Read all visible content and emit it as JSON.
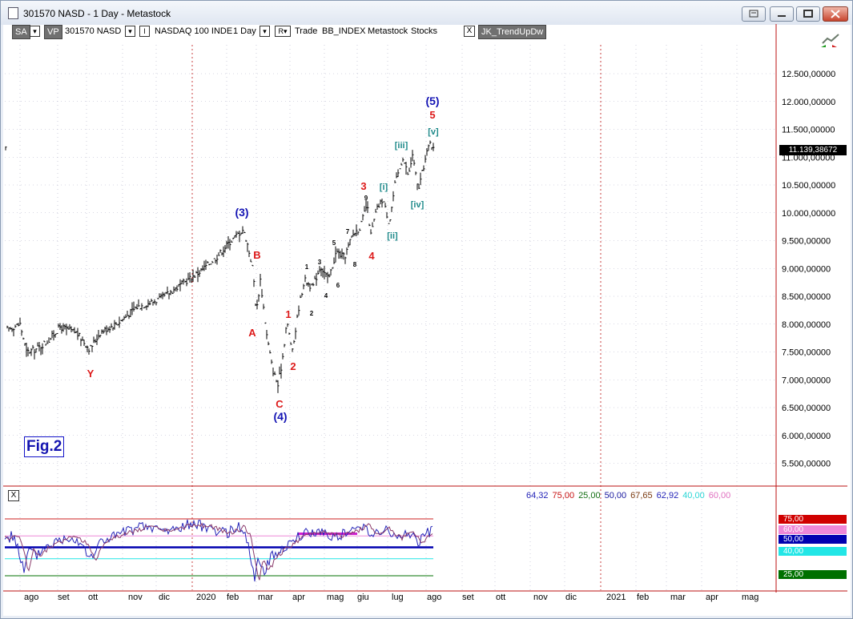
{
  "window": {
    "title": "301570 NASD - 1 Day - Metastock"
  },
  "toolbar": {
    "sa_label": "SA",
    "vp_label": "VP",
    "symbol": "301570 NASD",
    "index_name": "NASDAQ 100 INDE",
    "period": "1 Day",
    "btn_i_label": "I",
    "btn_r_label": "R",
    "trade_label": "Trade",
    "bb_label": "BB_INDEX",
    "metastock_label": "Metastock",
    "stocks_label": "Stocks",
    "close_label": "X",
    "indicator_label": "JK_TrendUpDw"
  },
  "figure_label": "Fig.2",
  "price_axis": {
    "ticks": [
      "12.500,00000",
      "12.000,00000",
      "11.500,00000",
      "11.000,00000",
      "10.500,00000",
      "10.000,00000",
      "9.500,00000",
      "9.000,00000",
      "8.500,00000",
      "8.000,00000",
      "7.500,00000",
      "7.000,00000",
      "6.500,00000",
      "6.000,00000",
      "5.500,00000"
    ],
    "current_value": "11.139,38672"
  },
  "time_axis": {
    "labels": [
      "ago",
      "set",
      "ott",
      "nov",
      "dic",
      "2020",
      "feb",
      "mar",
      "apr",
      "mag",
      "giu",
      "lug",
      "ago",
      "set",
      "ott",
      "nov",
      "dic",
      "2021",
      "feb",
      "mar",
      "apr",
      "mag"
    ]
  },
  "oscillator": {
    "close_label": "X",
    "values": [
      {
        "text": "64,32",
        "color": "#2424b8"
      },
      {
        "text": "75,00",
        "color": "#c81414"
      },
      {
        "text": "25,00",
        "color": "#157015"
      },
      {
        "text": "50,00",
        "color": "#1a1aa0"
      },
      {
        "text": "67,65",
        "color": "#7a3a10"
      },
      {
        "text": "62,92",
        "color": "#2424b8"
      },
      {
        "text": "40,00",
        "color": "#2ad6d6"
      },
      {
        "text": "60,00",
        "color": "#e070c0"
      }
    ],
    "axis_tags": [
      {
        "text": "75,00",
        "bg": "#d00000",
        "fg": "#ffffff"
      },
      {
        "text": "60,00",
        "bg": "#ee88d8",
        "fg": "#ffffff"
      },
      {
        "text": "50,00",
        "bg": "#0000b0",
        "fg": "#ffffff"
      },
      {
        "text": "40,00",
        "bg": "#22e6e6",
        "fg": "#ffffff"
      },
      {
        "text": "25,00",
        "bg": "#007000",
        "fg": "#ffffff"
      }
    ]
  },
  "wave_labels": {
    "y": "Y",
    "w3": "(3)",
    "b": "B",
    "a": "A",
    "c": "C",
    "w4": "(4)",
    "r1": "1",
    "r2": "2",
    "r3": "3",
    "r4": "4",
    "r5": "5",
    "w5": "(5)",
    "t_i": "[i]",
    "t_ii": "[ii]",
    "t_iii": "[iii]",
    "t_iv": "[iv]",
    "t_v": "[v]",
    "s1": "1",
    "s2": "2",
    "s3": "3",
    "s4": "4",
    "s5": "5",
    "s6": "6",
    "s7": "7",
    "s8": "8",
    "s9": "9"
  },
  "colors": {
    "red_label": "#dd1a1a",
    "blue_label": "#1414b4",
    "teal_label": "#1f8a8a",
    "grid_line": "#bb1111"
  },
  "chart_data": {
    "type": "bar",
    "title": "301570 NASD - 1 Day",
    "series": [
      {
        "name": "NASDAQ 100 INDE",
        "x": [
          "ago",
          "set",
          "ott",
          "nov",
          "dic",
          "2020",
          "feb",
          "mar",
          "apr",
          "mag",
          "giu",
          "lug",
          "ago"
        ],
        "values": [
          7800,
          7700,
          7650,
          8200,
          8450,
          8800,
          9500,
          7100,
          8200,
          9300,
          9900,
          10650,
          11139
        ]
      }
    ],
    "ylim": [
      5000,
      13000
    ]
  }
}
